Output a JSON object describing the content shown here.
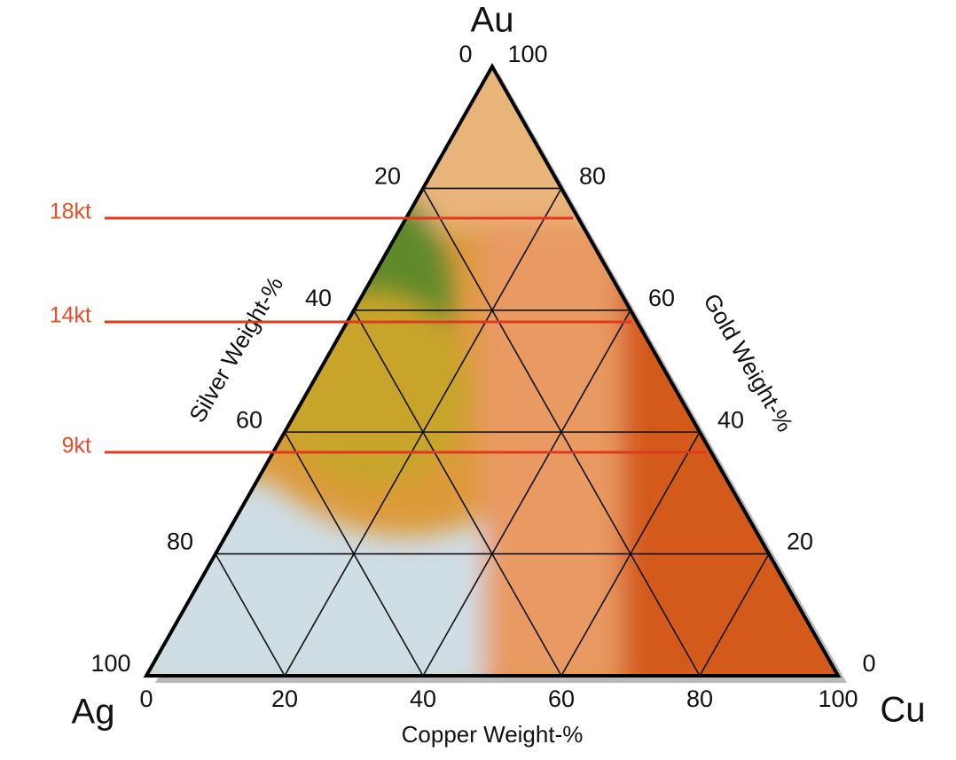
{
  "corners": {
    "top": "Au",
    "left": "Ag",
    "right": "Cu"
  },
  "axes": {
    "silver": {
      "title": "Silver Weight-%",
      "ticks": [
        0,
        20,
        40,
        60,
        80,
        100
      ]
    },
    "gold": {
      "title": "Gold Weight-%",
      "ticks": [
        100,
        80,
        60,
        40,
        20,
        0
      ]
    },
    "copper": {
      "title": "Copper Weight-%",
      "ticks": [
        0,
        20,
        40,
        60,
        80,
        100
      ]
    }
  },
  "karat_lines": [
    "18kt",
    "14kt",
    "9kt"
  ]
}
